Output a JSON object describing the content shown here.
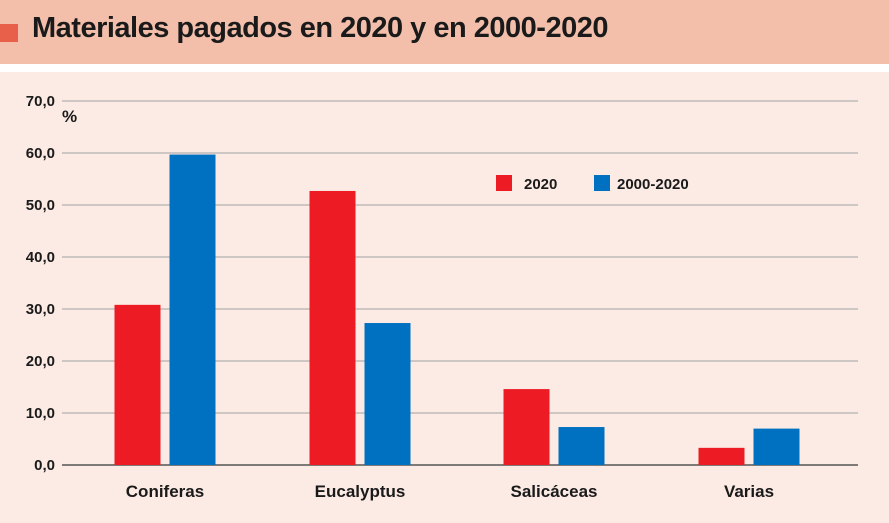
{
  "header": {
    "title": "Materiales pagados en 2020 y en 2000-2020",
    "marker_color": "#e8604a",
    "background_color": "#f3bfab"
  },
  "chart_data": {
    "type": "bar",
    "title": "Materiales pagados en 2020 y en 2000-2020",
    "ylabel": "%",
    "xlabel": "",
    "ylim": [
      0,
      70
    ],
    "yticks": [
      0,
      10,
      20,
      30,
      40,
      50,
      60,
      70
    ],
    "ytick_labels": [
      "0,0",
      "10,0",
      "20,0",
      "30,0",
      "40,0",
      "50,0",
      "60,0",
      "70,0"
    ],
    "grid": true,
    "legend_position": "top-right",
    "categories": [
      "Coniferas",
      "Eucalyptus",
      "Salicáceas",
      "Varias"
    ],
    "series": [
      {
        "name": "2020",
        "color": "#ed1c24",
        "values": [
          30.8,
          52.7,
          14.6,
          3.3
        ]
      },
      {
        "name": "2000-2020",
        "color": "#0070c0",
        "values": [
          59.7,
          27.3,
          7.3,
          7.0
        ]
      }
    ]
  }
}
